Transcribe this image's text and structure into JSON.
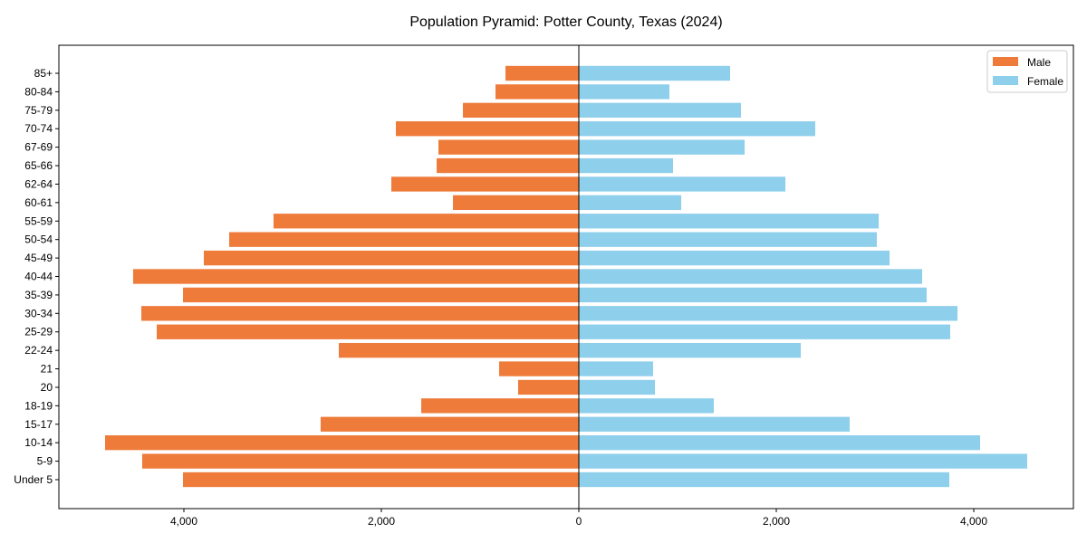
{
  "chart_data": {
    "type": "bar",
    "orientation": "horizontal",
    "title": "Population Pyramid: Potter County, Texas (2024)",
    "xlabel": "",
    "ylabel": "",
    "xlim": [
      -5266,
      5009
    ],
    "xticks": [
      -4000,
      -2000,
      0,
      2000,
      4000
    ],
    "xtick_labels": [
      "4,000",
      "2,000",
      "0",
      "2,000",
      "4,000"
    ],
    "legend_position": "top-right",
    "categories": [
      "85+",
      "80-84",
      "75-79",
      "70-74",
      "67-69",
      "65-66",
      "62-64",
      "60-61",
      "55-59",
      "50-54",
      "45-49",
      "40-44",
      "35-39",
      "30-34",
      "25-29",
      "22-24",
      "21",
      "20",
      "18-19",
      "15-17",
      "10-14",
      "5-9",
      "Under 5"
    ],
    "series": [
      {
        "name": "Male",
        "color": "#ee7b3a",
        "values": [
          743,
          844,
          1174,
          1853,
          1422,
          1440,
          1899,
          1275,
          3092,
          3541,
          3798,
          4514,
          4009,
          4431,
          4275,
          2431,
          807,
          615,
          1596,
          2615,
          4798,
          4422,
          4009
        ]
      },
      {
        "name": "Female",
        "color": "#8ecfec",
        "values": [
          1532,
          917,
          1642,
          2394,
          1679,
          954,
          2092,
          1037,
          3037,
          3018,
          3147,
          3477,
          3523,
          3835,
          3761,
          2248,
          752,
          771,
          1367,
          2743,
          4064,
          4541,
          3752
        ]
      }
    ]
  }
}
